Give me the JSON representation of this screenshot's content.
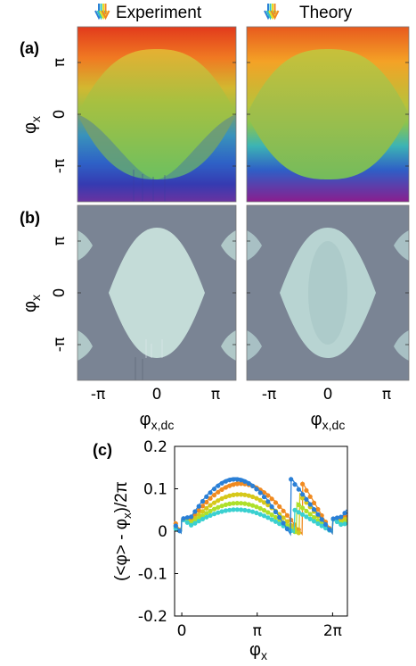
{
  "panels": {
    "a_label": "(a)",
    "b_label": "(b)",
    "c_label": "(c)",
    "experiment_title": "Experiment",
    "theory_title": "Theory"
  },
  "maps": {
    "ylabel": "φ",
    "ylabel_sub": "x",
    "xlabel": "φ",
    "xlabel_sub": "x,dc",
    "yticks": [
      "π",
      "0",
      "-π"
    ],
    "xticks": [
      "-π",
      "0",
      "π"
    ]
  },
  "arrow_colors": [
    "#2a7fd6",
    "#2ec4c4",
    "#e8e020",
    "#f08a20"
  ],
  "chart_data": {
    "type": "scatter",
    "title": "",
    "xlabel": "φ",
    "xlabel_sub": "x",
    "ylabel": "(<φ> - φ",
    "ylabel_sub": "x",
    "ylabel_tail": ")/2π",
    "xlim": [
      -0.3,
      6.9
    ],
    "ylim": [
      -0.2,
      0.2
    ],
    "xticks": [
      "0",
      "π",
      "2π"
    ],
    "yticks": [
      "0.2",
      "0.1",
      "0",
      "-0.1",
      "-0.2"
    ],
    "ytick_values": [
      0.2,
      0.1,
      0,
      -0.1,
      -0.2
    ],
    "xtick_values": [
      0,
      3.1416,
      6.2832
    ],
    "series": [
      {
        "color": "#f08a20",
        "amp": 0.11,
        "x_jump": 5.02
      },
      {
        "color": "#d6c81a",
        "amp": 0.085,
        "x_jump": 4.9
      },
      {
        "color": "#aee02a",
        "amp": 0.065,
        "x_jump": 4.78
      },
      {
        "color": "#3ad0d0",
        "amp": 0.05,
        "x_jump": 4.68
      },
      {
        "color": "#2a7fd6",
        "amp": 0.12,
        "x_jump": 4.55
      }
    ]
  }
}
